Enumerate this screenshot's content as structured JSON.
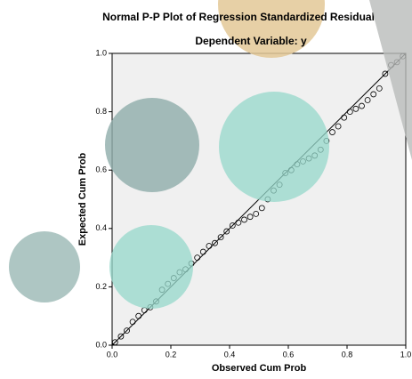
{
  "chart_data": {
    "type": "scatter",
    "title": "Normal P-P Plot of Regression Standardized Residual",
    "subtitle": "Dependent Variable: y",
    "x_label": "Observed Cum Prob",
    "y_label": "Expected Cum Prob",
    "x": [
      0.01,
      0.03,
      0.05,
      0.07,
      0.09,
      0.11,
      0.13,
      0.15,
      0.17,
      0.19,
      0.21,
      0.23,
      0.25,
      0.27,
      0.29,
      0.31,
      0.33,
      0.35,
      0.37,
      0.39,
      0.41,
      0.43,
      0.45,
      0.47,
      0.49,
      0.51,
      0.53,
      0.55,
      0.57,
      0.59,
      0.61,
      0.63,
      0.65,
      0.67,
      0.69,
      0.71,
      0.73,
      0.75,
      0.77,
      0.79,
      0.81,
      0.83,
      0.85,
      0.87,
      0.89,
      0.91,
      0.93,
      0.95,
      0.97,
      0.99
    ],
    "values": [
      0.01,
      0.03,
      0.05,
      0.08,
      0.1,
      0.12,
      0.13,
      0.15,
      0.19,
      0.21,
      0.23,
      0.25,
      0.26,
      0.28,
      0.3,
      0.32,
      0.34,
      0.35,
      0.37,
      0.39,
      0.41,
      0.42,
      0.43,
      0.44,
      0.45,
      0.47,
      0.5,
      0.53,
      0.55,
      0.59,
      0.6,
      0.62,
      0.63,
      0.64,
      0.65,
      0.67,
      0.7,
      0.73,
      0.75,
      0.78,
      0.8,
      0.81,
      0.82,
      0.84,
      0.86,
      0.88,
      0.93,
      0.96,
      0.97,
      0.99
    ],
    "color": "#000000",
    "xlim": [
      0,
      1
    ],
    "ylim": [
      0,
      1
    ],
    "xticks": [
      {
        "value": 0,
        "label": "0.0"
      },
      {
        "value": 0.2,
        "label": "0.2"
      },
      {
        "value": 0.4,
        "label": "0.4"
      },
      {
        "value": 0.6,
        "label": "0.6"
      },
      {
        "value": 0.8,
        "label": "0.8"
      },
      {
        "value": 1,
        "label": "1.0"
      }
    ],
    "yticks": [
      {
        "value": 0,
        "label": "0.0"
      },
      {
        "value": 0.2,
        "label": "0.2"
      },
      {
        "value": 0.4,
        "label": "0.4"
      },
      {
        "value": 0.6,
        "label": "0.6"
      },
      {
        "value": 0.8,
        "label": "0.8"
      },
      {
        "value": 1,
        "label": "1.0"
      }
    ],
    "grid": false
  }
}
